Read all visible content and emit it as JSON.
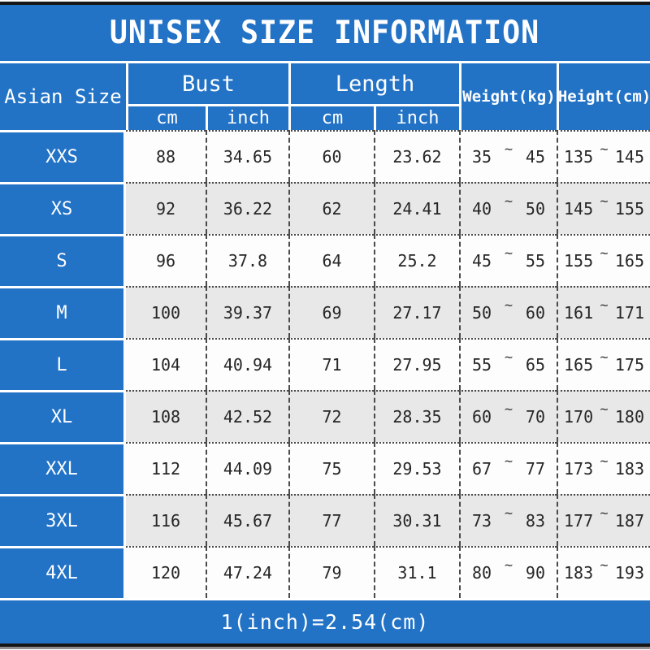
{
  "colors": {
    "accent-blue": "#2272c6",
    "row-alt-gray": "#e8e8e8",
    "bar-black": "#151515"
  },
  "title": "UNISEX SIZE INFORMATION",
  "table": {
    "tilde": "~",
    "header": {
      "asian_size": "Asian Size",
      "bust": "Bust",
      "length": "Length",
      "weight": "Weight(kg)",
      "height": "Height(cm)",
      "cm": "cm",
      "inch": "inch"
    },
    "rows": [
      {
        "size": "XXS",
        "bust_cm": "88",
        "bust_inch": "34.65",
        "length_cm": "60",
        "length_inch": "23.62",
        "weight_min": "35",
        "weight_max": "45",
        "height_min": "135",
        "height_max": "145"
      },
      {
        "size": "XS",
        "bust_cm": "92",
        "bust_inch": "36.22",
        "length_cm": "62",
        "length_inch": "24.41",
        "weight_min": "40",
        "weight_max": "50",
        "height_min": "145",
        "height_max": "155"
      },
      {
        "size": "S",
        "bust_cm": "96",
        "bust_inch": "37.8",
        "length_cm": "64",
        "length_inch": "25.2",
        "weight_min": "45",
        "weight_max": "55",
        "height_min": "155",
        "height_max": "165"
      },
      {
        "size": "M",
        "bust_cm": "100",
        "bust_inch": "39.37",
        "length_cm": "69",
        "length_inch": "27.17",
        "weight_min": "50",
        "weight_max": "60",
        "height_min": "161",
        "height_max": "171"
      },
      {
        "size": "L",
        "bust_cm": "104",
        "bust_inch": "40.94",
        "length_cm": "71",
        "length_inch": "27.95",
        "weight_min": "55",
        "weight_max": "65",
        "height_min": "165",
        "height_max": "175"
      },
      {
        "size": "XL",
        "bust_cm": "108",
        "bust_inch": "42.52",
        "length_cm": "72",
        "length_inch": "28.35",
        "weight_min": "60",
        "weight_max": "70",
        "height_min": "170",
        "height_max": "180"
      },
      {
        "size": "XXL",
        "bust_cm": "112",
        "bust_inch": "44.09",
        "length_cm": "75",
        "length_inch": "29.53",
        "weight_min": "67",
        "weight_max": "77",
        "height_min": "173",
        "height_max": "183"
      },
      {
        "size": "3XL",
        "bust_cm": "116",
        "bust_inch": "45.67",
        "length_cm": "77",
        "length_inch": "30.31",
        "weight_min": "73",
        "weight_max": "83",
        "height_min": "177",
        "height_max": "187"
      },
      {
        "size": "4XL",
        "bust_cm": "120",
        "bust_inch": "47.24",
        "length_cm": "79",
        "length_inch": "31.1",
        "weight_min": "80",
        "weight_max": "90",
        "height_min": "183",
        "height_max": "193"
      }
    ]
  },
  "footer": {
    "note": "1(inch)=2.54(cm)"
  }
}
